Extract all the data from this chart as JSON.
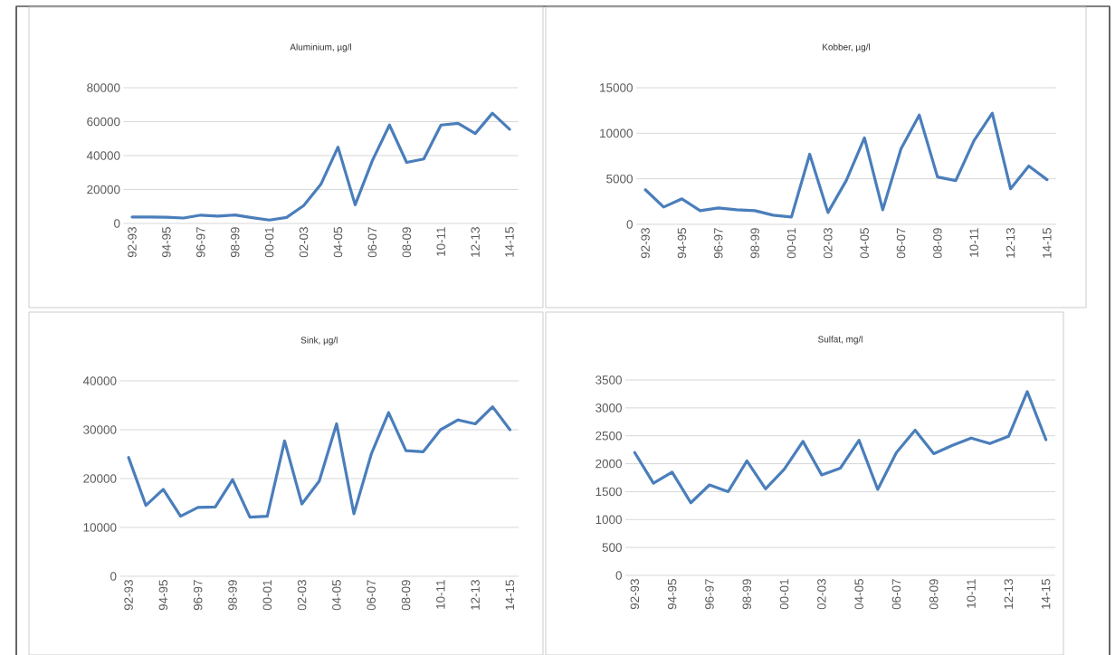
{
  "chart_data": [
    {
      "type": "line",
      "title": "Aluminium, µg/l",
      "categories": [
        "92-93",
        null,
        "94-95",
        null,
        "96-97",
        null,
        "98-99",
        null,
        "00-01",
        null,
        "02-03",
        null,
        "04-05",
        null,
        "06-07",
        null,
        "08-09",
        null,
        "10-11",
        null,
        "12-13",
        null,
        "14-15"
      ],
      "values": [
        3800,
        3800,
        3700,
        3200,
        4900,
        4300,
        5000,
        3400,
        2000,
        3500,
        10500,
        23000,
        45000,
        11000,
        37000,
        58000,
        36000,
        38000,
        58000,
        59000,
        53000,
        65000,
        55500
      ],
      "color": "#4a7ebb",
      "ylim": [
        0,
        80000
      ],
      "yticks": [
        0,
        20000,
        40000,
        60000,
        80000
      ],
      "grid": "y"
    },
    {
      "type": "line",
      "title": "Kobber, µg/l",
      "categories": [
        "92-93",
        null,
        "94-95",
        null,
        "96-97",
        null,
        "98-99",
        null,
        "00-01",
        null,
        "02-03",
        null,
        "04-05",
        null,
        "06-07",
        null,
        "08-09",
        null,
        "10-11",
        null,
        "12-13",
        null,
        "14-15"
      ],
      "values": [
        3800,
        1900,
        2800,
        1500,
        1800,
        1600,
        1500,
        1000,
        800,
        7700,
        1300,
        4800,
        9500,
        1600,
        8300,
        12000,
        5200,
        4800,
        9200,
        12200,
        3900,
        6400,
        4900
      ],
      "color": "#4a7ebb",
      "ylim": [
        0,
        15000
      ],
      "yticks": [
        0,
        5000,
        10000,
        15000
      ],
      "grid": "y"
    },
    {
      "type": "line",
      "title": "Sink, µg/l",
      "categories": [
        "92-93",
        null,
        "94-95",
        null,
        "96-97",
        null,
        "98-99",
        null,
        "00-01",
        null,
        "02-03",
        null,
        "04-05",
        null,
        "06-07",
        null,
        "08-09",
        null,
        "10-11",
        null,
        "12-13",
        null,
        "14-15"
      ],
      "values": [
        24300,
        14500,
        17800,
        12300,
        14100,
        14200,
        19800,
        12100,
        12300,
        27700,
        14800,
        19500,
        31200,
        12800,
        25000,
        33500,
        25700,
        25500,
        30000,
        32000,
        31200,
        34700,
        30000
      ],
      "color": "#4a7ebb",
      "ylim": [
        0,
        40000
      ],
      "yticks": [
        0,
        10000,
        20000,
        30000,
        40000
      ],
      "grid": "y"
    },
    {
      "type": "line",
      "title": "Sulfat, mg/l",
      "categories": [
        "92-93",
        null,
        "94-95",
        null,
        "96-97",
        null,
        "98-99",
        null,
        "00-01",
        null,
        "02-03",
        null,
        "04-05",
        null,
        "06-07",
        null,
        "08-09",
        null,
        "10-11",
        null,
        "12-13",
        null,
        "14-15"
      ],
      "values": [
        2200,
        1650,
        1850,
        1300,
        1620,
        1500,
        2050,
        1550,
        1900,
        2400,
        1800,
        1920,
        2420,
        1540,
        2200,
        2600,
        2180,
        2330,
        2460,
        2360,
        2490,
        3290,
        2430
      ],
      "color": "#4a7ebb",
      "ylim": [
        0,
        3500
      ],
      "yticks": [
        0,
        500,
        1000,
        1500,
        2000,
        2500,
        3000,
        3500
      ],
      "grid": "y"
    }
  ]
}
